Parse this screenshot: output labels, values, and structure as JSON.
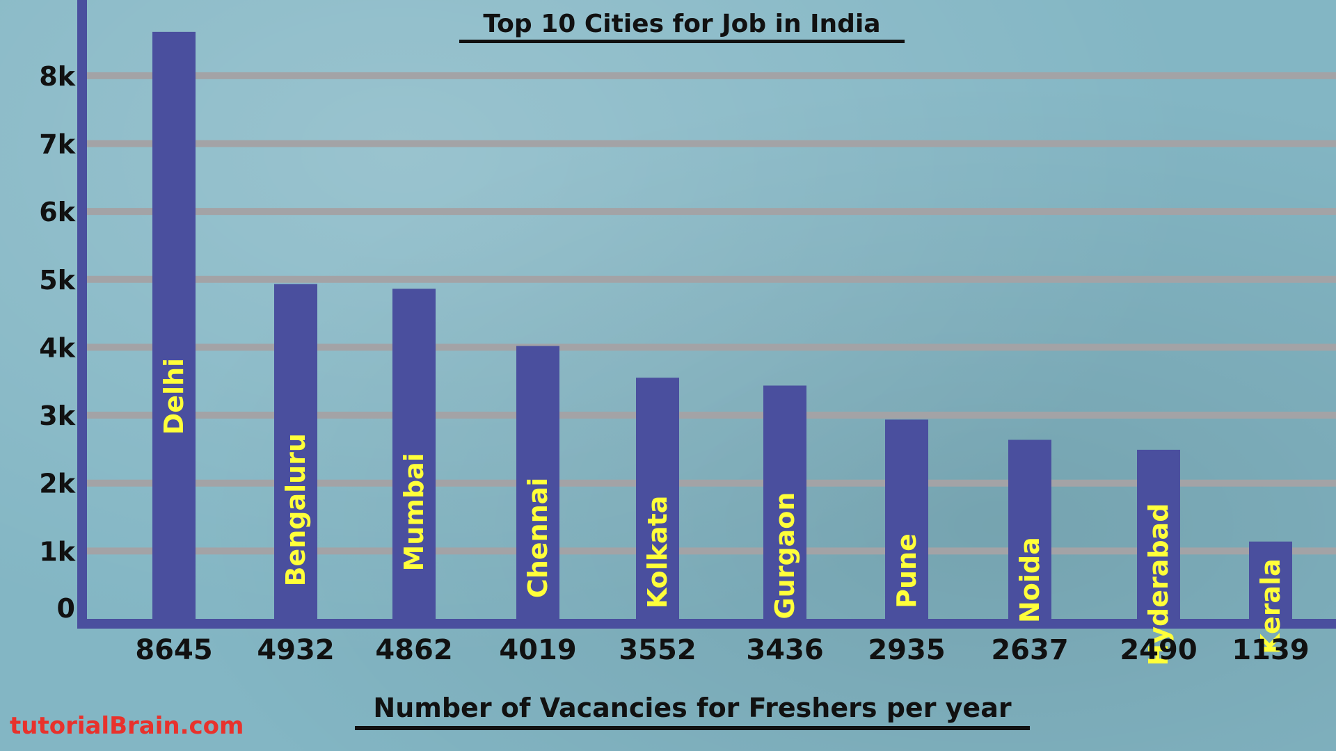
{
  "chart_data": {
    "type": "bar",
    "title": "Top 10 Cities for Job in India",
    "xlabel": "Number of Vacancies for Freshers per year",
    "ylabel": "",
    "categories": [
      "Delhi",
      "Bengaluru",
      "Mumbai",
      "Chennai",
      "Kolkata",
      "Gurgaon",
      "Pune",
      "Noida",
      "Hyderabad",
      "Kerala"
    ],
    "values": [
      8645,
      4932,
      4862,
      4019,
      3552,
      3436,
      2935,
      2637,
      2490,
      1139
    ],
    "value_labels": [
      "8645",
      "4932",
      "4862",
      "4019",
      "3552",
      "3436",
      "2935",
      "2637",
      "2490",
      "1139"
    ],
    "ytick_labels": [
      "0",
      "1k",
      "2k",
      "3k",
      "4k",
      "5k",
      "6k",
      "7k",
      "8k"
    ],
    "ylim": [
      0,
      8500
    ],
    "grid": true,
    "legend": "none"
  },
  "colors": {
    "bar": "#4a4f9e",
    "axis": "#4a4f9e",
    "gridline": "#a3a3a6",
    "category_label": "#ffff3a",
    "text": "#111111",
    "watermark": "#e8322c"
  },
  "watermark": "tutorialBrain.com"
}
